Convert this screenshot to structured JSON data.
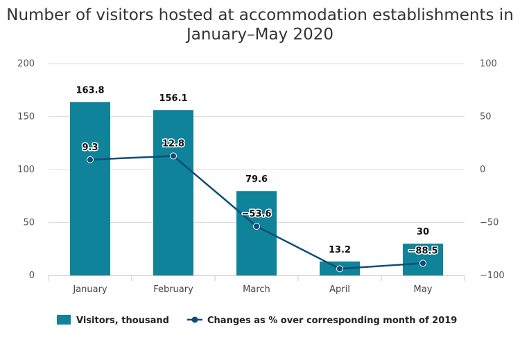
{
  "chart_data": {
    "type": "bar",
    "title": "Number of visitors hosted at accommodation establishments in January–May 2020",
    "categories": [
      "January",
      "February",
      "March",
      "April",
      "May"
    ],
    "series": [
      {
        "name": "Visitors, thousand",
        "type": "bar",
        "axis": "left",
        "color": "#0e8399",
        "values": [
          163.8,
          156.1,
          79.6,
          13.2,
          30
        ]
      },
      {
        "name": "Changes as % over corresponding month of 2019",
        "type": "line",
        "axis": "right",
        "color": "#0e4d78",
        "values": [
          9.3,
          12.8,
          -53.6,
          -93.7,
          -88.5
        ],
        "labels": [
          "9.3",
          "12.8",
          "-53.6",
          "",
          "-88.5"
        ]
      }
    ],
    "bar_labels": [
      "163.8",
      "156.1",
      "79.6",
      "13.2",
      "30"
    ],
    "ylim_left": [
      0,
      200
    ],
    "yticks_left": [
      0,
      50,
      100,
      150,
      200
    ],
    "ylim_right": [
      -100,
      100
    ],
    "yticks_right": [
      -100,
      -50,
      0,
      50,
      100
    ],
    "grid": true,
    "legend": "bottom-center"
  }
}
